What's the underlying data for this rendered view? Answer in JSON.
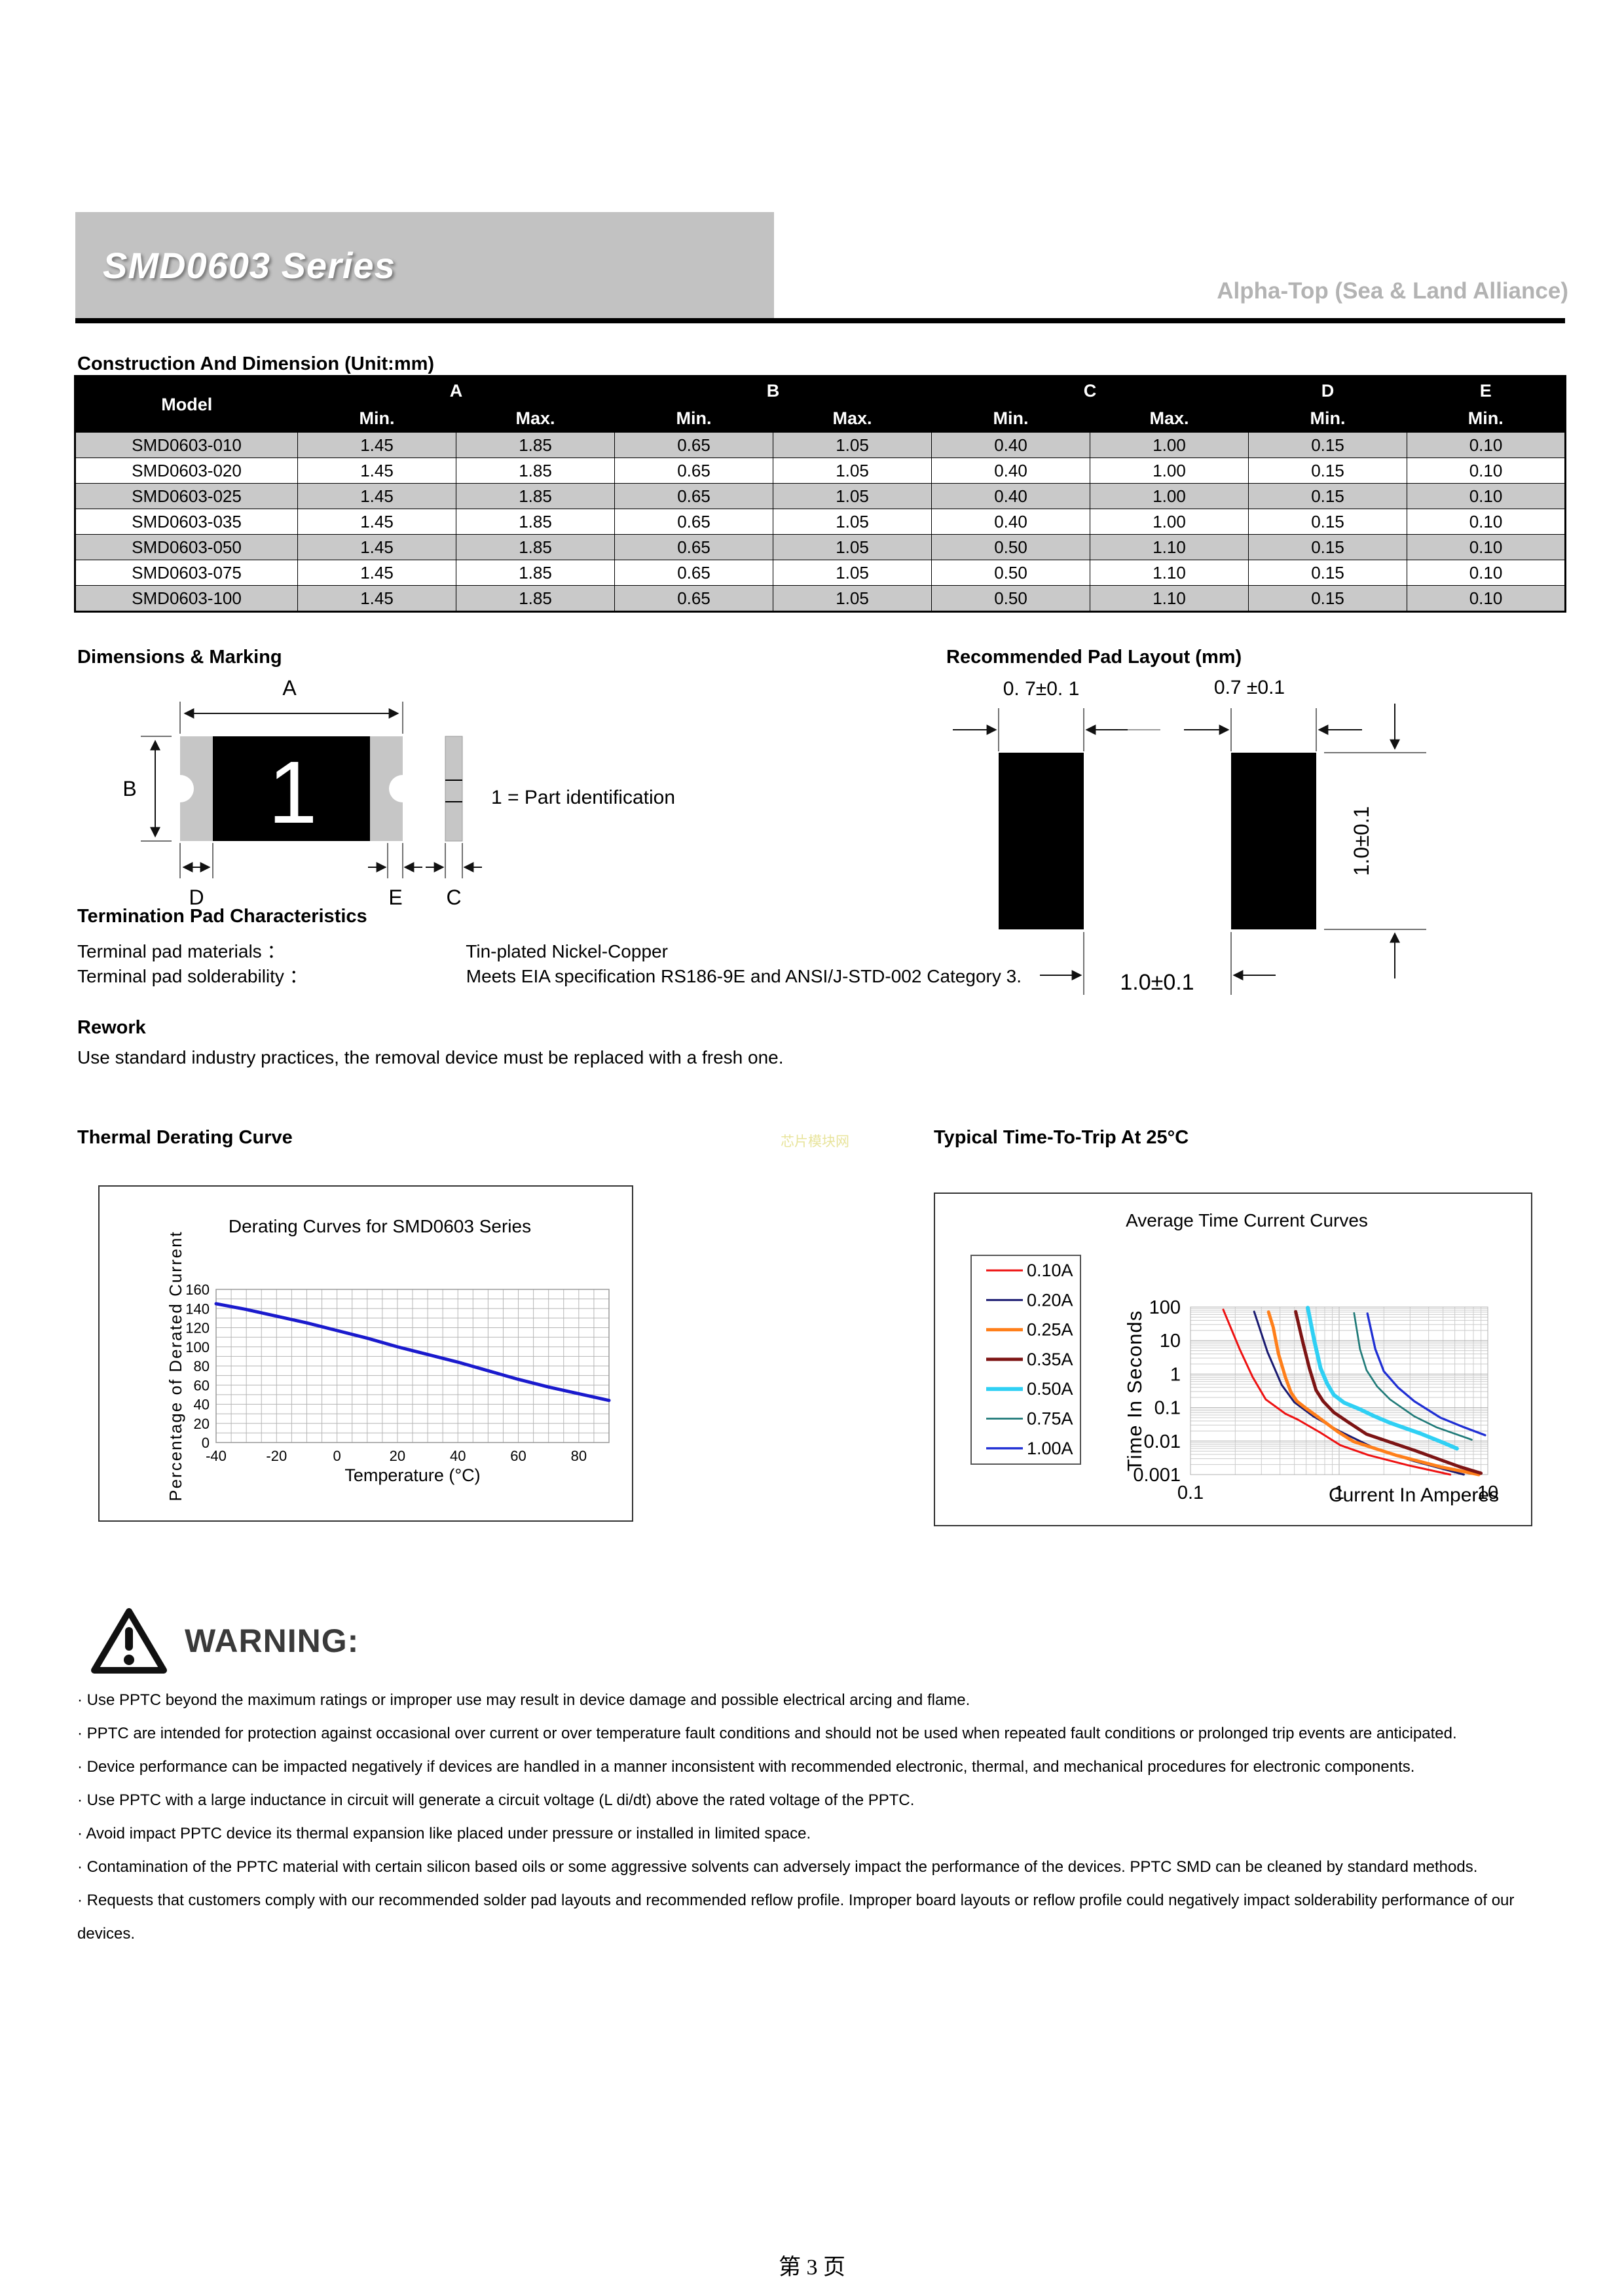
{
  "header": {
    "series_title": "SMD0603 Series",
    "brand": "Alpha-Top (Sea & Land Alliance)"
  },
  "construction": {
    "heading": "Construction And Dimension (Unit:mm)",
    "model_header": "Model",
    "group_headers": [
      "A",
      "B",
      "C",
      "D",
      "E"
    ],
    "sub_headers": [
      "Min.",
      "Max.",
      "Min.",
      "Max.",
      "Min.",
      "Max.",
      "Min.",
      "Min."
    ],
    "rows": [
      {
        "model": "SMD0603-010",
        "values": [
          "1.45",
          "1.85",
          "0.65",
          "1.05",
          "0.40",
          "1.00",
          "0.15",
          "0.10"
        ]
      },
      {
        "model": "SMD0603-020",
        "values": [
          "1.45",
          "1.85",
          "0.65",
          "1.05",
          "0.40",
          "1.00",
          "0.15",
          "0.10"
        ]
      },
      {
        "model": "SMD0603-025",
        "values": [
          "1.45",
          "1.85",
          "0.65",
          "1.05",
          "0.40",
          "1.00",
          "0.15",
          "0.10"
        ]
      },
      {
        "model": "SMD0603-035",
        "values": [
          "1.45",
          "1.85",
          "0.65",
          "1.05",
          "0.40",
          "1.00",
          "0.15",
          "0.10"
        ]
      },
      {
        "model": "SMD0603-050",
        "values": [
          "1.45",
          "1.85",
          "0.65",
          "1.05",
          "0.50",
          "1.10",
          "0.15",
          "0.10"
        ]
      },
      {
        "model": "SMD0603-075",
        "values": [
          "1.45",
          "1.85",
          "0.65",
          "1.05",
          "0.50",
          "1.10",
          "0.15",
          "0.10"
        ]
      },
      {
        "model": "SMD0603-100",
        "values": [
          "1.45",
          "1.85",
          "0.65",
          "1.05",
          "0.50",
          "1.10",
          "0.15",
          "0.10"
        ]
      }
    ]
  },
  "dimensions_marking": {
    "heading": "Dimensions & Marking",
    "labels": {
      "a": "A",
      "b": "B",
      "d": "D",
      "e": "E",
      "c": "C"
    },
    "part_mark": "1",
    "note": "1 = Part identification"
  },
  "pad_layout": {
    "heading": "Recommended Pad Layout (mm)",
    "dim_top_left": "0. 7±0. 1",
    "dim_top_right": "0.7 ±0.1",
    "dim_bottom": "1.0±0.1",
    "dim_right": "1.0±0.1"
  },
  "termination": {
    "heading": "Termination Pad Characteristics",
    "rows": [
      {
        "label": "Terminal pad materials ：",
        "value": "Tin-plated Nickel-Copper"
      },
      {
        "label": "Terminal pad solderability ：",
        "value": "Meets EIA specification RS186-9E and ANSI/J-STD-002 Category 3."
      }
    ]
  },
  "rework": {
    "heading": "Rework",
    "text": "Use standard industry practices, the removal device must be replaced with a fresh one."
  },
  "derating_section": {
    "heading": "Thermal Derating Curve"
  },
  "trip_section": {
    "heading": "Typical Time-To-Trip At 25°C"
  },
  "watermark": "芯片模块网",
  "warning": {
    "title": "WARNING:",
    "items": [
      "Use PPTC beyond the maximum ratings or improper use may result in device damage and possible electrical arcing and flame.",
      "PPTC are intended for protection against occasional over current or over temperature fault conditions and should not be used when repeated fault conditions or prolonged trip events are anticipated.",
      "Device performance can be impacted negatively if devices are handled in a manner inconsistent with recommended electronic, thermal, and mechanical procedures for electronic components.",
      "Use PPTC with a large inductance in circuit will generate a circuit voltage (L di/dt) above the rated voltage of the PPTC.",
      "Avoid impact PPTC device its thermal expansion like placed under pressure or installed in limited space.",
      "Contamination of the PPTC material with certain silicon based oils or some aggressive solvents can adversely impact the performance of the devices. PPTC SMD can be cleaned by standard methods.",
      "Requests that customers comply with our recommended solder pad layouts and recommended reflow profile. Improper board layouts or reflow profile could negatively impact solderability performance of our devices."
    ]
  },
  "footer": {
    "page_label": "第 3 页"
  },
  "chart_data": [
    {
      "type": "line",
      "title": "Derating Curves for SMD0603 Series",
      "xlabel": "Temperature (°C)",
      "ylabel": "Percentage of Derated Current",
      "xlim": [
        -40,
        90
      ],
      "ylim": [
        0,
        160
      ],
      "x_major_ticks": [
        -40,
        -20,
        0,
        20,
        40,
        60,
        80
      ],
      "y_major_ticks": [
        0,
        20,
        40,
        60,
        80,
        100,
        120,
        140,
        160
      ],
      "x_minor_step": 5,
      "y_minor_step": 10,
      "grid": true,
      "legend_position": "none",
      "series": [
        {
          "name": "SMD0603",
          "color": "#1a1acd",
          "width": 5,
          "x": [
            -40,
            -30,
            -20,
            -10,
            0,
            10,
            20,
            30,
            40,
            50,
            60,
            70,
            80,
            90
          ],
          "y": [
            145,
            139,
            132,
            125,
            117,
            109,
            100,
            92,
            84,
            75,
            66,
            58,
            51,
            44
          ]
        }
      ]
    },
    {
      "type": "line",
      "title": "Average Time Current Curves",
      "xlabel": "Current In Amperes",
      "ylabel": "Time In Seconds",
      "x_scale": "log",
      "y_scale": "log",
      "xlim": [
        0.1,
        10
      ],
      "ylim": [
        0.001,
        100
      ],
      "x_ticks": [
        0.1,
        1,
        10
      ],
      "y_ticks": [
        100,
        10,
        1,
        0.1,
        0.01,
        0.001
      ],
      "grid": true,
      "legend_position": "left",
      "series": [
        {
          "name": "0.10A",
          "color": "#ee1111",
          "width": 3,
          "x": [
            0.166,
            0.214,
            0.262,
            0.321,
            0.435,
            0.528,
            0.75,
            1.02,
            1.58,
            2.9,
            5.6
          ],
          "y": [
            84,
            5.6,
            0.81,
            0.175,
            0.0655,
            0.0437,
            0.0178,
            0.0075,
            0.0038,
            0.0019,
            0.001
          ]
        },
        {
          "name": "0.20A",
          "color": "#191970",
          "width": 3,
          "x": [
            0.268,
            0.33,
            0.41,
            0.5,
            0.67,
            1.0,
            1.75,
            3.2,
            6.9
          ],
          "y": [
            73,
            4.5,
            0.48,
            0.143,
            0.055,
            0.02,
            0.006,
            0.0025,
            0.001
          ]
        },
        {
          "name": "0.25A",
          "color": "#ff7f1a",
          "width": 5,
          "x": [
            0.335,
            0.36,
            0.39,
            0.435,
            0.475,
            0.52,
            0.59,
            0.75,
            0.98,
            1.25,
            2.4,
            4.8,
            8.7
          ],
          "y": [
            71,
            25,
            4.1,
            0.81,
            0.28,
            0.155,
            0.1,
            0.046,
            0.019,
            0.0097,
            0.0038,
            0.0017,
            0.001
          ]
        },
        {
          "name": "0.35A",
          "color": "#7d1414",
          "width": 5,
          "x": [
            0.51,
            0.57,
            0.63,
            0.7,
            0.78,
            0.92,
            1.17,
            1.53,
            3.2,
            6.5,
            9.0
          ],
          "y": [
            73,
            8.8,
            1.5,
            0.33,
            0.155,
            0.072,
            0.035,
            0.016,
            0.0053,
            0.0017,
            0.0011
          ]
        },
        {
          "name": "0.50A",
          "color": "#2fd0f4",
          "width": 6,
          "x": [
            0.615,
            0.68,
            0.75,
            0.83,
            0.92,
            1.08,
            1.38,
            1.7,
            2.2,
            3.5,
            5.0,
            6.2
          ],
          "y": [
            95,
            10,
            1.5,
            0.52,
            0.24,
            0.14,
            0.089,
            0.057,
            0.035,
            0.017,
            0.009,
            0.006
          ]
        },
        {
          "name": "0.75A",
          "color": "#1f7a78",
          "width": 2.7,
          "x": [
            1.26,
            1.38,
            1.53,
            1.8,
            2.2,
            3.2,
            4.5,
            7.8
          ],
          "y": [
            66,
            5.6,
            1.3,
            0.43,
            0.175,
            0.055,
            0.026,
            0.011
          ]
        },
        {
          "name": "1.00A",
          "color": "#1f2fd4",
          "width": 3.3,
          "x": [
            1.55,
            1.75,
            2.0,
            2.5,
            3.2,
            4.8,
            6.9,
            9.6
          ],
          "y": [
            64,
            5.6,
            1.2,
            0.39,
            0.155,
            0.05,
            0.026,
            0.015
          ]
        }
      ]
    }
  ]
}
